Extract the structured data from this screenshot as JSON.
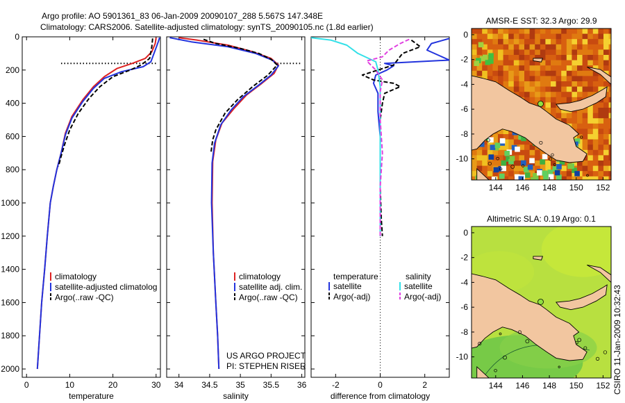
{
  "header": {
    "line1": "Argo profile: AO 5901361_83 06-Jan-2009 20090107_288 5.567S 147.348E",
    "line2": "Climatology: CARS2006. Satellite-adjusted climatology: synTS_20090105.nc (1.8d earlier)"
  },
  "side_label": "CSIRO 11-Jan-2009 10:32:43",
  "colors": {
    "climatology": "#dd2222",
    "satellite": "#2233dd",
    "argo": "#000000",
    "salinity_satellite": "#33e0e8",
    "salinity_argo": "#e040e0",
    "land": "#f2c6a0",
    "ocean_sst": "#e8a020",
    "ocean_sla": "#b8e040"
  },
  "chart_data": [
    {
      "type": "line",
      "id": "temperature",
      "xlabel": "temperature",
      "xlim": [
        -1,
        31
      ],
      "ylim": [
        2050,
        0
      ],
      "xticks": [
        0,
        10,
        20,
        30
      ],
      "yticks": [
        0,
        200,
        400,
        600,
        800,
        1000,
        1200,
        1400,
        1600,
        1800,
        2000
      ],
      "series": [
        {
          "name": "climatology",
          "color": "#dd2222",
          "dash": "",
          "points": [
            [
              30,
              5
            ],
            [
              29.8,
              40
            ],
            [
              29.0,
              90
            ],
            [
              27.5,
              130
            ],
            [
              24.5,
              160
            ],
            [
              21,
              190
            ],
            [
              18,
              240
            ],
            [
              15.5,
              300
            ],
            [
              13,
              380
            ],
            [
              10.5,
              480
            ],
            [
              9,
              580
            ],
            [
              8,
              700
            ],
            [
              7,
              800
            ],
            [
              6.2,
              900
            ],
            [
              5.5,
              1000
            ],
            [
              4.8,
              1200
            ],
            [
              4.2,
              1400
            ],
            [
              3.5,
              1600
            ],
            [
              3.0,
              1800
            ],
            [
              2.5,
              2000
            ]
          ]
        },
        {
          "name": "satellite-adjusted climatology",
          "color": "#2233dd",
          "dash": "",
          "points": [
            [
              30.8,
              5
            ],
            [
              30.5,
              30
            ],
            [
              29.8,
              80
            ],
            [
              28.8,
              150
            ],
            [
              27,
              180
            ],
            [
              22,
              210
            ],
            [
              18,
              250
            ],
            [
              15.5,
              310
            ],
            [
              13,
              390
            ],
            [
              10.5,
              490
            ],
            [
              9,
              590
            ],
            [
              8,
              700
            ],
            [
              7,
              800
            ],
            [
              6.2,
              900
            ],
            [
              5.5,
              1000
            ],
            [
              4.8,
              1200
            ],
            [
              4.2,
              1400
            ],
            [
              3.5,
              1600
            ],
            [
              3.0,
              1800
            ],
            [
              2.5,
              2000
            ]
          ]
        },
        {
          "name": "Argo(..raw -QC)",
          "color": "#000000",
          "dash": "6 3",
          "points": [
            [
              29.2,
              10
            ],
            [
              29.0,
              60
            ],
            [
              28.5,
              130
            ],
            [
              26.5,
              170
            ],
            [
              24,
              200
            ],
            [
              20,
              240
            ],
            [
              17,
              300
            ],
            [
              14.5,
              370
            ],
            [
              12,
              460
            ],
            [
              10,
              560
            ],
            [
              8.8,
              650
            ],
            [
              8,
              720
            ],
            [
              7.4,
              780
            ]
          ]
        }
      ],
      "thermocline_mark": {
        "depth": 160,
        "x_from": 8,
        "x_to": 30
      }
    },
    {
      "type": "line",
      "id": "salinity",
      "xlabel": "salinity",
      "xlim": [
        33.8,
        36.05
      ],
      "ylim": [
        2050,
        0
      ],
      "xticks": [
        34,
        34.5,
        35,
        35.5,
        36
      ],
      "xticklabels": [
        "34",
        "34.5",
        "35",
        "35.5",
        "36"
      ],
      "series": [
        {
          "name": "climatology",
          "color": "#dd2222",
          "dash": "",
          "points": [
            [
              34.0,
              5
            ],
            [
              34.3,
              20
            ],
            [
              34.8,
              50
            ],
            [
              35.2,
              90
            ],
            [
              35.5,
              130
            ],
            [
              35.62,
              170
            ],
            [
              35.55,
              220
            ],
            [
              35.35,
              280
            ],
            [
              35.1,
              350
            ],
            [
              34.9,
              430
            ],
            [
              34.7,
              520
            ],
            [
              34.6,
              620
            ],
            [
              34.55,
              750
            ],
            [
              34.54,
              1000
            ],
            [
              34.56,
              1300
            ],
            [
              34.6,
              1600
            ],
            [
              34.63,
              1800
            ],
            [
              34.65,
              2000
            ]
          ]
        },
        {
          "name": "satellite adj. clim.",
          "color": "#2233dd",
          "dash": "",
          "points": [
            [
              33.85,
              5
            ],
            [
              34.2,
              30
            ],
            [
              34.8,
              60
            ],
            [
              35.25,
              100
            ],
            [
              35.52,
              140
            ],
            [
              35.62,
              175
            ],
            [
              35.5,
              230
            ],
            [
              35.3,
              290
            ],
            [
              35.05,
              360
            ],
            [
              34.85,
              440
            ],
            [
              34.68,
              530
            ],
            [
              34.58,
              640
            ],
            [
              34.54,
              760
            ],
            [
              34.53,
              1000
            ],
            [
              34.56,
              1300
            ],
            [
              34.6,
              1600
            ],
            [
              34.63,
              1800
            ],
            [
              34.65,
              2000
            ]
          ]
        },
        {
          "name": "Argo(..raw -QC)",
          "color": "#000000",
          "dash": "6 3",
          "points": [
            [
              34.4,
              15
            ],
            [
              34.6,
              40
            ],
            [
              35.0,
              70
            ],
            [
              35.3,
              100
            ],
            [
              35.5,
              135
            ],
            [
              35.6,
              170
            ],
            [
              35.45,
              230
            ],
            [
              35.2,
              300
            ],
            [
              34.95,
              380
            ],
            [
              34.75,
              460
            ],
            [
              34.6,
              560
            ],
            [
              34.55,
              620
            ],
            [
              34.52,
              700
            ]
          ]
        }
      ],
      "thermocline_mark": {
        "depth": 160,
        "x_from": 35.6,
        "x_to": 36.0
      },
      "credit": [
        "US ARGO PROJECT",
        "PI: STEPHEN RISER"
      ]
    },
    {
      "type": "line",
      "id": "difference",
      "xlabel": "difference from climatology",
      "xlim": [
        -3.1,
        3.1
      ],
      "ylim": [
        2050,
        0
      ],
      "xticks": [
        -2,
        0,
        2
      ],
      "series": [
        {
          "name": "temperature satellite",
          "color": "#2233dd",
          "dash": "",
          "points": [
            [
              3.1,
              10
            ],
            [
              2.3,
              40
            ],
            [
              2.1,
              80
            ],
            [
              3.1,
              140
            ],
            [
              0.2,
              160
            ],
            [
              0.6,
              175
            ],
            [
              0.3,
              200
            ],
            [
              -0.2,
              230
            ],
            [
              -0.3,
              280
            ],
            [
              -0.1,
              340
            ],
            [
              -0.1,
              450
            ],
            [
              0.0,
              600
            ],
            [
              0.0,
              900
            ],
            [
              0.0,
              1200
            ]
          ]
        },
        {
          "name": "temperature Argo(-adj)",
          "color": "#000000",
          "dash": "6 3",
          "points": [
            [
              1.4,
              20
            ],
            [
              1.8,
              60
            ],
            [
              1.0,
              100
            ],
            [
              0.6,
              170
            ],
            [
              -0.8,
              230
            ],
            [
              -0.3,
              260
            ],
            [
              0.6,
              280
            ],
            [
              0.9,
              300
            ],
            [
              0.2,
              340
            ],
            [
              0.1,
              400
            ],
            [
              0.0,
              500
            ],
            [
              0.0,
              700
            ],
            [
              0.0,
              900
            ],
            [
              0.05,
              1100
            ],
            [
              0.1,
              1200
            ]
          ]
        },
        {
          "name": "salinity satellite",
          "color": "#33e0e8",
          "dash": "",
          "points": [
            [
              -3.1,
              5
            ],
            [
              -2.2,
              20
            ],
            [
              -1.5,
              50
            ],
            [
              -1.0,
              100
            ],
            [
              -0.2,
              150
            ],
            [
              -0.1,
              200
            ],
            [
              0.0,
              300
            ],
            [
              0.0,
              500
            ],
            [
              0.0,
              800
            ],
            [
              0.0,
              1200
            ]
          ]
        },
        {
          "name": "salinity Argo(-adj)",
          "color": "#e040e0",
          "dash": "6 3",
          "points": [
            [
              1.3,
              15
            ],
            [
              0.9,
              40
            ],
            [
              0.4,
              80
            ],
            [
              0.1,
              120
            ],
            [
              -0.6,
              145
            ],
            [
              -0.2,
              200
            ],
            [
              0.1,
              260
            ],
            [
              0.0,
              330
            ],
            [
              0.0,
              500
            ],
            [
              0.1,
              700
            ],
            [
              0.0,
              900
            ],
            [
              0.0,
              1100
            ],
            [
              0.0,
              1200
            ]
          ]
        }
      ]
    }
  ],
  "legends": {
    "temperature": [
      "climatology",
      "satellite-adjusted climatolog",
      "Argo(..raw -QC)"
    ],
    "salinity": [
      "climatology",
      "satellite adj. clim.",
      "Argo(..raw -QC)"
    ],
    "difference": {
      "col1_title": "temperature",
      "col2_title": "salinity",
      "col1": [
        "satellite",
        "Argo(-adj)"
      ],
      "col2": [
        "satellite",
        "Argo(-adj)"
      ]
    }
  },
  "maps": [
    {
      "id": "sst",
      "title": "AMSR-E SST: 32.3 Argo: 29.9",
      "xticks": [
        144,
        146,
        148,
        150,
        152
      ],
      "yticks": [
        0,
        -2,
        -4,
        -6,
        -8,
        -10
      ],
      "xlim": [
        142.2,
        152.6
      ],
      "ylim": [
        -11.7,
        0.5
      ],
      "argo_position": [
        147.348,
        -5.567
      ]
    },
    {
      "id": "sla",
      "title": "Altimetric SLA: 0.19 Argo: 0.1",
      "xticks": [
        144,
        146,
        148,
        150,
        152
      ],
      "yticks": [
        0,
        -2,
        -4,
        -6,
        -8,
        -10
      ],
      "xlim": [
        142.2,
        152.6
      ],
      "ylim": [
        -11.7,
        0.5
      ],
      "argo_position": [
        147.348,
        -5.567
      ]
    }
  ]
}
